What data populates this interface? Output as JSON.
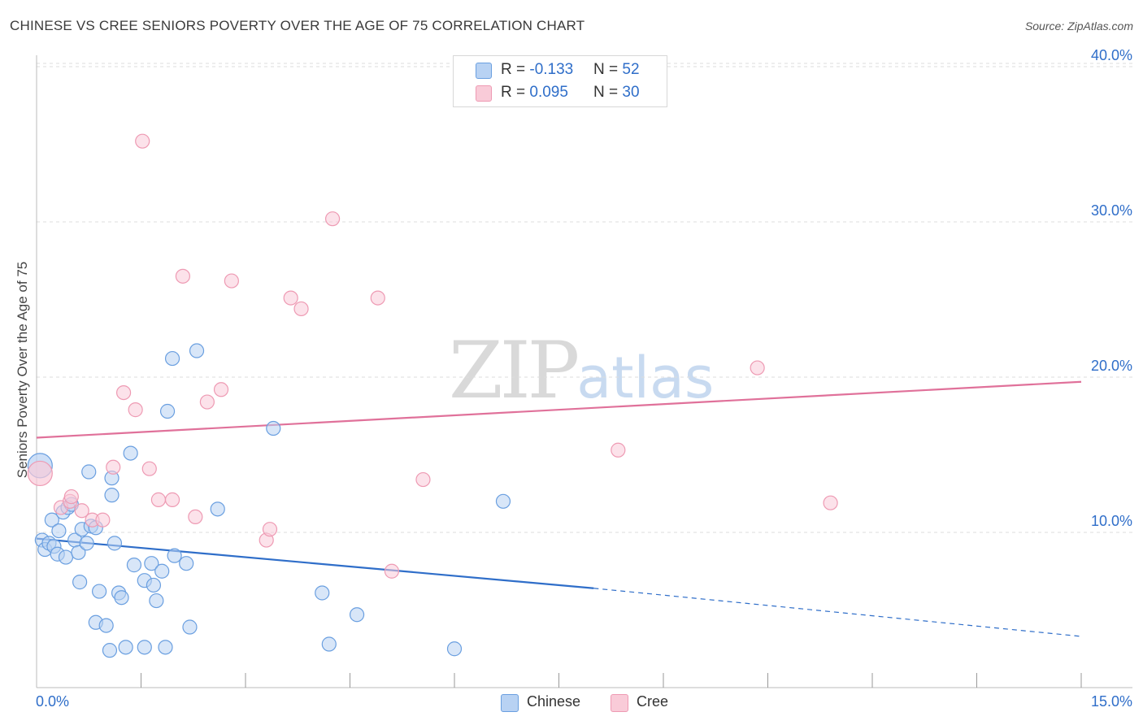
{
  "header": {
    "title": "CHINESE VS CREE SENIORS POVERTY OVER THE AGE OF 75 CORRELATION CHART",
    "source": "Source: ZipAtlas.com"
  },
  "watermark": {
    "zip": "ZIP",
    "atlas": "atlas"
  },
  "legend": {
    "chinese": {
      "r_label": "R = ",
      "r_value": "-0.133",
      "n_label": "N = ",
      "n_value": "52"
    },
    "cree": {
      "r_label": "R = ",
      "r_value": "0.095",
      "n_label": "N = ",
      "n_value": "30"
    }
  },
  "colors": {
    "chinese_fill": "#b8d2f3",
    "chinese_stroke": "#6a9fe0",
    "chinese_line": "#2f6ec9",
    "cree_fill": "#f9cbd8",
    "cree_stroke": "#ee9ab3",
    "cree_line": "#e0719a",
    "grid": "#dddddd",
    "tick_label": "#2f6ec9"
  },
  "chart_data": {
    "type": "scatter",
    "title": "CHINESE VS CREE SENIORS POVERTY OVER THE AGE OF 75 CORRELATION CHART",
    "xlabel": "",
    "ylabel": "Seniors Poverty Over the Age of 75",
    "xlim": [
      0,
      15
    ],
    "ylim": [
      0,
      41
    ],
    "x_tick_labels": [
      {
        "value": 0,
        "label": "0.0%"
      },
      {
        "value": 15,
        "label": "15.0%"
      }
    ],
    "y_tick_labels": [
      {
        "value": 10,
        "label": "10.0%"
      },
      {
        "value": 20,
        "label": "20.0%"
      },
      {
        "value": 30,
        "label": "30.0%"
      },
      {
        "value": 40,
        "label": "40.0%"
      }
    ],
    "x_minor_ticks": [
      1.5,
      3,
      4.5,
      6,
      7.5,
      9,
      10.5,
      12,
      13.5,
      15
    ],
    "series": [
      {
        "name": "Chinese",
        "points": [
          [
            0.05,
            14.3
          ],
          [
            0.08,
            9.5
          ],
          [
            0.12,
            8.9
          ],
          [
            0.18,
            9.3
          ],
          [
            0.22,
            10.8
          ],
          [
            0.25,
            9.1
          ],
          [
            0.3,
            8.6
          ],
          [
            0.32,
            10.1
          ],
          [
            0.38,
            11.3
          ],
          [
            0.42,
            8.4
          ],
          [
            0.45,
            11.6
          ],
          [
            0.5,
            11.8
          ],
          [
            0.55,
            9.5
          ],
          [
            0.6,
            8.7
          ],
          [
            0.62,
            6.8
          ],
          [
            0.65,
            10.2
          ],
          [
            0.72,
            9.3
          ],
          [
            0.75,
            13.9
          ],
          [
            0.78,
            10.4
          ],
          [
            0.85,
            10.3
          ],
          [
            0.85,
            4.2
          ],
          [
            0.9,
            6.2
          ],
          [
            1.0,
            4.0
          ],
          [
            1.05,
            2.4
          ],
          [
            1.08,
            12.4
          ],
          [
            1.08,
            13.5
          ],
          [
            1.12,
            9.3
          ],
          [
            1.18,
            6.1
          ],
          [
            1.22,
            5.8
          ],
          [
            1.28,
            2.6
          ],
          [
            1.35,
            15.1
          ],
          [
            1.4,
            7.9
          ],
          [
            1.55,
            6.9
          ],
          [
            1.55,
            2.6
          ],
          [
            1.65,
            8.0
          ],
          [
            1.68,
            6.6
          ],
          [
            1.72,
            5.6
          ],
          [
            1.8,
            7.5
          ],
          [
            1.85,
            2.6
          ],
          [
            1.88,
            17.8
          ],
          [
            1.95,
            21.2
          ],
          [
            1.98,
            8.5
          ],
          [
            2.15,
            8.0
          ],
          [
            2.2,
            3.9
          ],
          [
            2.3,
            21.7
          ],
          [
            2.6,
            11.5
          ],
          [
            3.4,
            16.7
          ],
          [
            4.1,
            6.1
          ],
          [
            4.2,
            2.8
          ],
          [
            4.6,
            4.7
          ],
          [
            6.0,
            2.5
          ],
          [
            6.7,
            12.0
          ]
        ],
        "trend": {
          "x": [
            0,
            8
          ],
          "y": [
            9.6,
            6.4
          ],
          "dashed_extension": {
            "x": [
              8,
              15
            ],
            "y": [
              6.4,
              3.3
            ]
          }
        }
      },
      {
        "name": "Cree",
        "points": [
          [
            0.05,
            13.8
          ],
          [
            0.35,
            11.6
          ],
          [
            0.48,
            12.0
          ],
          [
            0.5,
            12.3
          ],
          [
            0.65,
            11.4
          ],
          [
            0.8,
            10.8
          ],
          [
            0.95,
            10.8
          ],
          [
            1.1,
            14.2
          ],
          [
            1.25,
            19.0
          ],
          [
            1.42,
            17.9
          ],
          [
            1.52,
            35.2
          ],
          [
            1.62,
            14.1
          ],
          [
            1.75,
            12.1
          ],
          [
            1.95,
            12.1
          ],
          [
            2.1,
            26.5
          ],
          [
            2.28,
            11.0
          ],
          [
            2.45,
            18.4
          ],
          [
            2.65,
            19.2
          ],
          [
            2.8,
            26.2
          ],
          [
            3.3,
            9.5
          ],
          [
            3.35,
            10.2
          ],
          [
            3.65,
            25.1
          ],
          [
            3.8,
            24.4
          ],
          [
            4.25,
            30.2
          ],
          [
            4.9,
            25.1
          ],
          [
            5.1,
            7.5
          ],
          [
            5.55,
            13.4
          ],
          [
            8.35,
            15.3
          ],
          [
            10.35,
            20.6
          ],
          [
            11.4,
            11.9
          ]
        ],
        "trend": {
          "x": [
            0,
            15
          ],
          "y": [
            16.1,
            19.7
          ]
        }
      }
    ]
  }
}
